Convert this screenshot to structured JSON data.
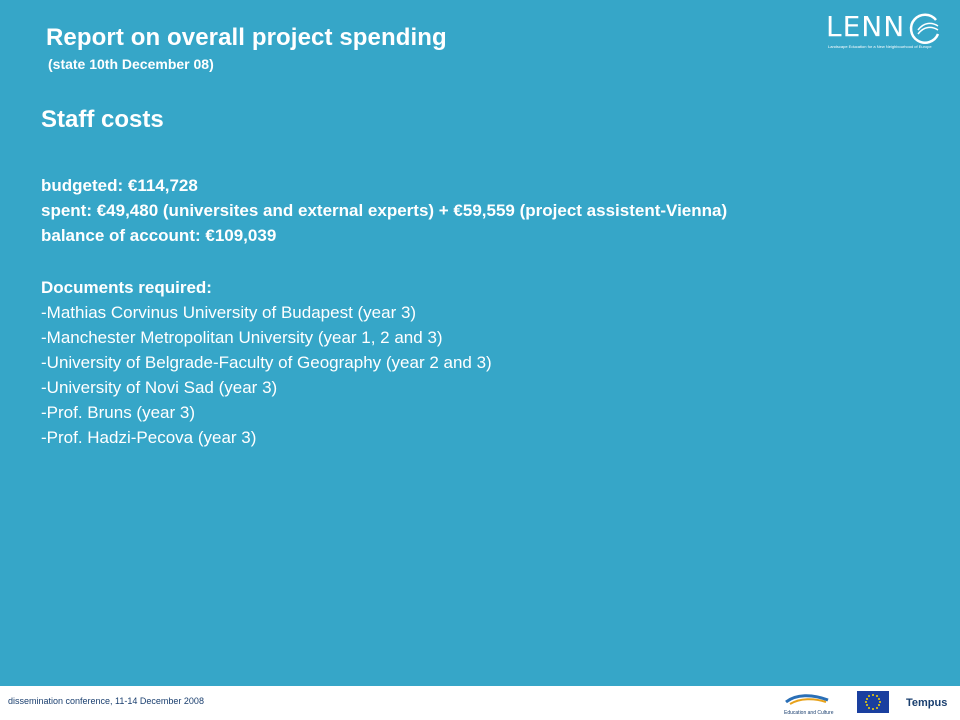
{
  "header": {
    "title": "Report on overall project spending",
    "subtitle": "(state 10th December 08)"
  },
  "logo": {
    "text": "LENN",
    "tagline": "Landscape Education for a New Neighbourhood of Europe"
  },
  "section": {
    "heading": "Staff costs",
    "budgeted": "budgeted: €114,728",
    "spent": "spent: €49,480 (universites and external experts) + €59,559 (project assistent-Vienna)",
    "balance": "balance of account: €109,039",
    "documents_heading": "Documents required:",
    "documents": [
      "-Mathias Corvinus University of Budapest (year 3)",
      "-Manchester Metropolitan University (year 1, 2 and 3)",
      "-University of Belgrade-Faculty of Geography (year 2 and 3)",
      "-University of Novi Sad (year 3)",
      "-Prof. Bruns (year 3)",
      "-Prof. Hadzi-Pecova (year 3)"
    ]
  },
  "footer": {
    "text": "dissemination conference, 11-14 December 2008",
    "edu_logo_label": "Education and Culture",
    "tempus_label": "Tempus"
  },
  "colors": {
    "slide_background": "#36a6c8",
    "text": "#ffffff",
    "footer_text": "#1a3f6f"
  }
}
